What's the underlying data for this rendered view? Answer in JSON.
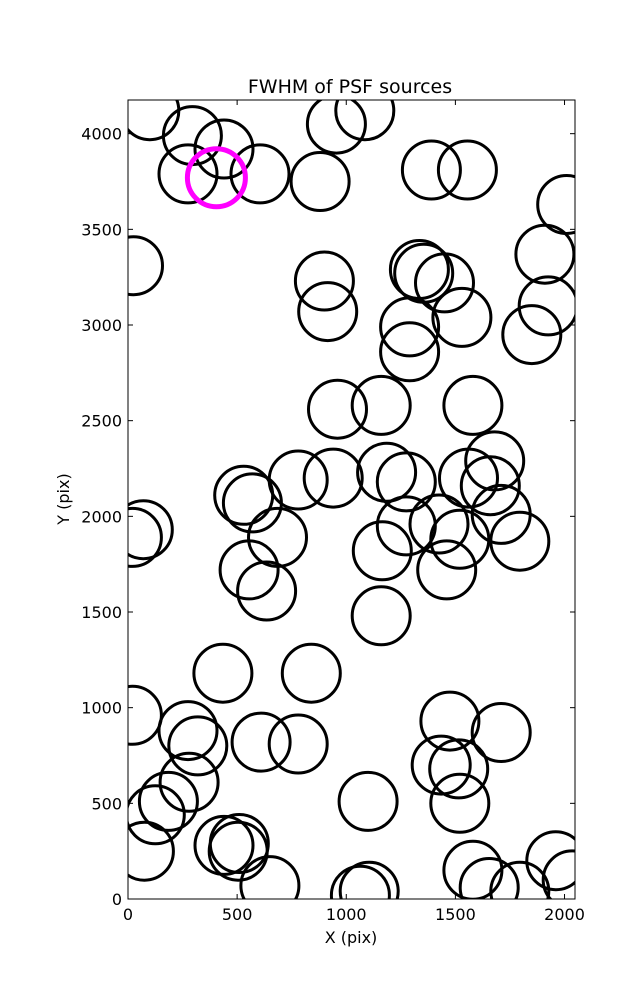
{
  "chart_data": {
    "type": "scatter",
    "title": "FWHM of PSF sources",
    "xlabel": "X (pix)",
    "ylabel": "Y (pix)",
    "xlim": [
      0,
      2048
    ],
    "ylim": [
      0,
      4176
    ],
    "xticks": [
      0,
      500,
      1000,
      1500,
      2000
    ],
    "yticks": [
      0,
      500,
      1000,
      1500,
      2000,
      2500,
      3000,
      3500,
      4000
    ],
    "grid": false,
    "legend": "none",
    "marker": "open-circle",
    "marker_color": "#000000",
    "highlight_color": "#ff00ff",
    "series": [
      {
        "points": [
          [
            100,
            4120
          ],
          [
            295,
            3990
          ],
          [
            440,
            3920
          ],
          [
            275,
            3790
          ],
          [
            605,
            3790
          ],
          [
            880,
            3750
          ],
          [
            955,
            4050
          ],
          [
            1085,
            4120
          ],
          [
            1390,
            3810
          ],
          [
            1555,
            3810
          ],
          [
            2010,
            3630
          ],
          [
            25,
            3310
          ],
          [
            900,
            3230
          ],
          [
            915,
            3070
          ],
          [
            1335,
            3290
          ],
          [
            1355,
            3270
          ],
          [
            1450,
            3220
          ],
          [
            1290,
            2990
          ],
          [
            1530,
            3040
          ],
          [
            1290,
            2860
          ],
          [
            1850,
            2950
          ],
          [
            1910,
            3370
          ],
          [
            1925,
            3100
          ],
          [
            960,
            2560
          ],
          [
            1160,
            2580
          ],
          [
            1580,
            2580
          ],
          [
            1680,
            2290
          ],
          [
            940,
            2200
          ],
          [
            1185,
            2230
          ],
          [
            1275,
            2180
          ],
          [
            1560,
            2200
          ],
          [
            1660,
            2160
          ],
          [
            1710,
            2010
          ],
          [
            780,
            2190
          ],
          [
            530,
            2110
          ],
          [
            570,
            2070
          ],
          [
            685,
            1890
          ],
          [
            70,
            1930
          ],
          [
            20,
            1890
          ],
          [
            1275,
            1950
          ],
          [
            1425,
            1960
          ],
          [
            1520,
            1880
          ],
          [
            1795,
            1870
          ],
          [
            1165,
            1820
          ],
          [
            555,
            1720
          ],
          [
            635,
            1610
          ],
          [
            1460,
            1720
          ],
          [
            1160,
            1480
          ],
          [
            435,
            1180
          ],
          [
            840,
            1180
          ],
          [
            20,
            960
          ],
          [
            275,
            880
          ],
          [
            320,
            800
          ],
          [
            610,
            820
          ],
          [
            780,
            810
          ],
          [
            1475,
            930
          ],
          [
            1710,
            870
          ],
          [
            1435,
            700
          ],
          [
            1515,
            680
          ],
          [
            280,
            610
          ],
          [
            185,
            510
          ],
          [
            125,
            440
          ],
          [
            75,
            250
          ],
          [
            440,
            280
          ],
          [
            505,
            250
          ],
          [
            510,
            290
          ],
          [
            650,
            70
          ],
          [
            1100,
            510
          ],
          [
            1520,
            500
          ],
          [
            1105,
            40
          ],
          [
            1065,
            20
          ],
          [
            1580,
            150
          ],
          [
            1655,
            60
          ],
          [
            1795,
            40
          ],
          [
            1960,
            200
          ],
          [
            2035,
            100
          ]
        ]
      },
      {
        "name": "highlighted",
        "points": [
          [
            405,
            3770
          ]
        ]
      }
    ]
  }
}
